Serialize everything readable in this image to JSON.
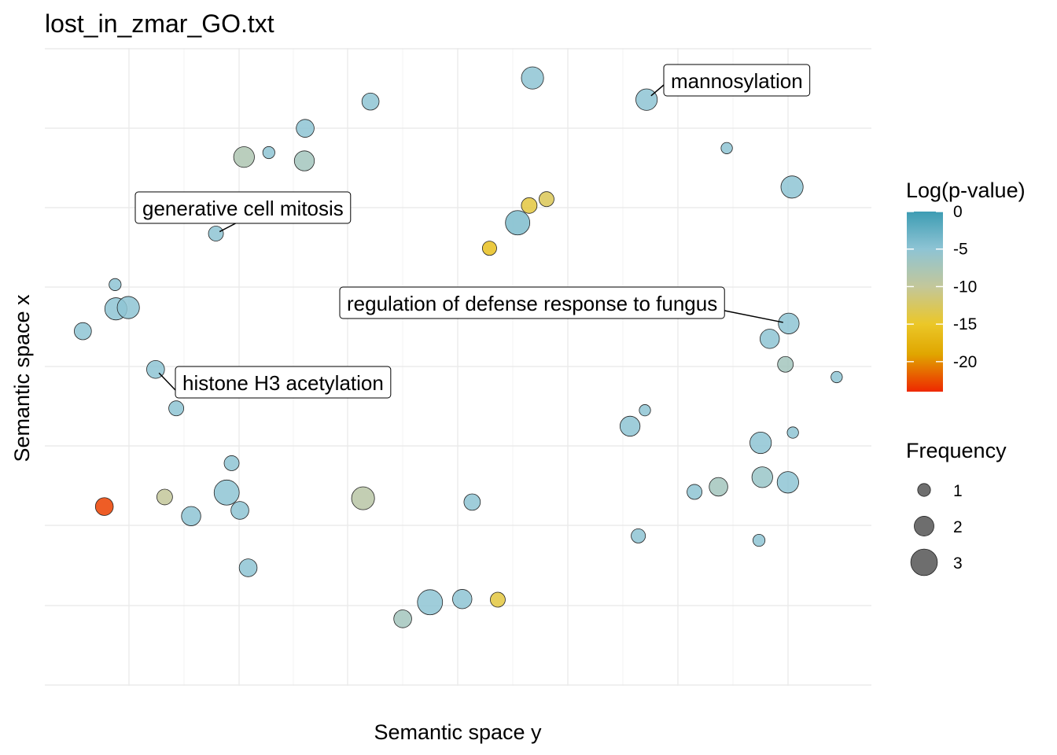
{
  "chart_data": {
    "type": "scatter",
    "title": "lost_in_zmar_GO.txt",
    "xlabel": "Semantic space y",
    "ylabel": "Semantic space x",
    "xlim": [
      0,
      100
    ],
    "ylim": [
      0,
      100
    ],
    "grid": true,
    "colorbar": {
      "title": "Log(p-value)",
      "ticks": [
        "0",
        "-5",
        "-10",
        "-15",
        "-20"
      ],
      "tick_values": [
        0,
        -5,
        -10,
        -15,
        -20
      ],
      "range": [
        -24,
        0
      ],
      "stops": [
        {
          "value": 0,
          "color": "#3d9cb3"
        },
        {
          "value": -5,
          "color": "#8ec4d4"
        },
        {
          "value": -10,
          "color": "#c3c79a"
        },
        {
          "value": -15,
          "color": "#ebc728"
        },
        {
          "value": -19,
          "color": "#e0a600"
        },
        {
          "value": -24,
          "color": "#ee2800"
        }
      ]
    },
    "size_legend": {
      "title": "Frequency",
      "entries": [
        {
          "label": "1",
          "value": 1
        },
        {
          "label": "2",
          "value": 2
        },
        {
          "label": "3",
          "value": 3
        }
      ],
      "point_color": "#555555"
    },
    "points": [
      {
        "x": 59.0,
        "y": 95.3,
        "logp": -5,
        "freq": 2.2
      },
      {
        "x": 39.4,
        "y": 91.6,
        "logp": -5,
        "freq": 1.5
      },
      {
        "x": 72.8,
        "y": 91.9,
        "logp": -5,
        "freq": 2.1,
        "label": "mannosylation"
      },
      {
        "x": 31.5,
        "y": 87.4,
        "logp": -5,
        "freq": 1.6
      },
      {
        "x": 24.1,
        "y": 82.9,
        "logp": -8,
        "freq": 2.0
      },
      {
        "x": 27.1,
        "y": 83.6,
        "logp": -5,
        "freq": 0.8
      },
      {
        "x": 31.4,
        "y": 82.3,
        "logp": -7,
        "freq": 1.9
      },
      {
        "x": 82.5,
        "y": 84.3,
        "logp": -5,
        "freq": 0.7
      },
      {
        "x": 90.4,
        "y": 78.2,
        "logp": -5,
        "freq": 2.2
      },
      {
        "x": 60.7,
        "y": 76.3,
        "logp": -13,
        "freq": 1.2
      },
      {
        "x": 58.6,
        "y": 75.3,
        "logp": -14,
        "freq": 1.3
      },
      {
        "x": 57.2,
        "y": 72.6,
        "logp": -4,
        "freq": 2.5
      },
      {
        "x": 53.8,
        "y": 68.6,
        "logp": -16,
        "freq": 1.1
      },
      {
        "x": 20.7,
        "y": 70.9,
        "logp": -5,
        "freq": 1.2,
        "label": "generative cell mitosis"
      },
      {
        "x": 8.5,
        "y": 62.9,
        "logp": -5,
        "freq": 0.8
      },
      {
        "x": 8.6,
        "y": 59.1,
        "logp": -5,
        "freq": 2.2
      },
      {
        "x": 10.1,
        "y": 59.3,
        "logp": -5,
        "freq": 2.2
      },
      {
        "x": 4.6,
        "y": 55.6,
        "logp": -5,
        "freq": 1.5
      },
      {
        "x": 90.0,
        "y": 56.8,
        "logp": -5,
        "freq": 2.0,
        "label": "regulation of defense response to fungus"
      },
      {
        "x": 87.7,
        "y": 54.4,
        "logp": -5,
        "freq": 1.8
      },
      {
        "x": 89.6,
        "y": 50.4,
        "logp": -7,
        "freq": 1.3
      },
      {
        "x": 95.8,
        "y": 48.4,
        "logp": -5,
        "freq": 0.7
      },
      {
        "x": 13.4,
        "y": 49.6,
        "logp": -5,
        "freq": 1.6,
        "label": "histone H3 acetylation"
      },
      {
        "x": 15.9,
        "y": 43.5,
        "logp": -5,
        "freq": 1.2
      },
      {
        "x": 72.6,
        "y": 43.2,
        "logp": -5,
        "freq": 0.7
      },
      {
        "x": 70.8,
        "y": 40.7,
        "logp": -5,
        "freq": 1.9
      },
      {
        "x": 90.5,
        "y": 39.7,
        "logp": -5,
        "freq": 0.7
      },
      {
        "x": 86.6,
        "y": 38.1,
        "logp": -5,
        "freq": 2.1
      },
      {
        "x": 22.6,
        "y": 34.9,
        "logp": -5,
        "freq": 1.2
      },
      {
        "x": 86.8,
        "y": 32.7,
        "logp": -6,
        "freq": 2.0
      },
      {
        "x": 81.5,
        "y": 31.2,
        "logp": -7,
        "freq": 1.7
      },
      {
        "x": 89.9,
        "y": 31.9,
        "logp": -5,
        "freq": 2.1
      },
      {
        "x": 78.6,
        "y": 30.4,
        "logp": -5,
        "freq": 1.2
      },
      {
        "x": 22.0,
        "y": 30.3,
        "logp": -5,
        "freq": 2.6
      },
      {
        "x": 14.5,
        "y": 29.6,
        "logp": -10,
        "freq": 1.3
      },
      {
        "x": 38.5,
        "y": 29.4,
        "logp": -9,
        "freq": 2.3
      },
      {
        "x": 51.7,
        "y": 28.8,
        "logp": -5,
        "freq": 1.4
      },
      {
        "x": 7.2,
        "y": 28.1,
        "logp": -23,
        "freq": 1.6
      },
      {
        "x": 17.7,
        "y": 26.6,
        "logp": -5,
        "freq": 1.8
      },
      {
        "x": 23.6,
        "y": 27.5,
        "logp": -5,
        "freq": 1.6
      },
      {
        "x": 71.8,
        "y": 23.5,
        "logp": -5,
        "freq": 1.1
      },
      {
        "x": 86.4,
        "y": 22.8,
        "logp": -5,
        "freq": 0.8
      },
      {
        "x": 24.6,
        "y": 18.5,
        "logp": -5,
        "freq": 1.6
      },
      {
        "x": 50.5,
        "y": 13.6,
        "logp": -5,
        "freq": 1.8
      },
      {
        "x": 46.6,
        "y": 13.1,
        "logp": -5,
        "freq": 2.6
      },
      {
        "x": 54.8,
        "y": 13.5,
        "logp": -14,
        "freq": 1.2
      },
      {
        "x": 43.3,
        "y": 10.5,
        "logp": -7,
        "freq": 1.6
      }
    ]
  }
}
